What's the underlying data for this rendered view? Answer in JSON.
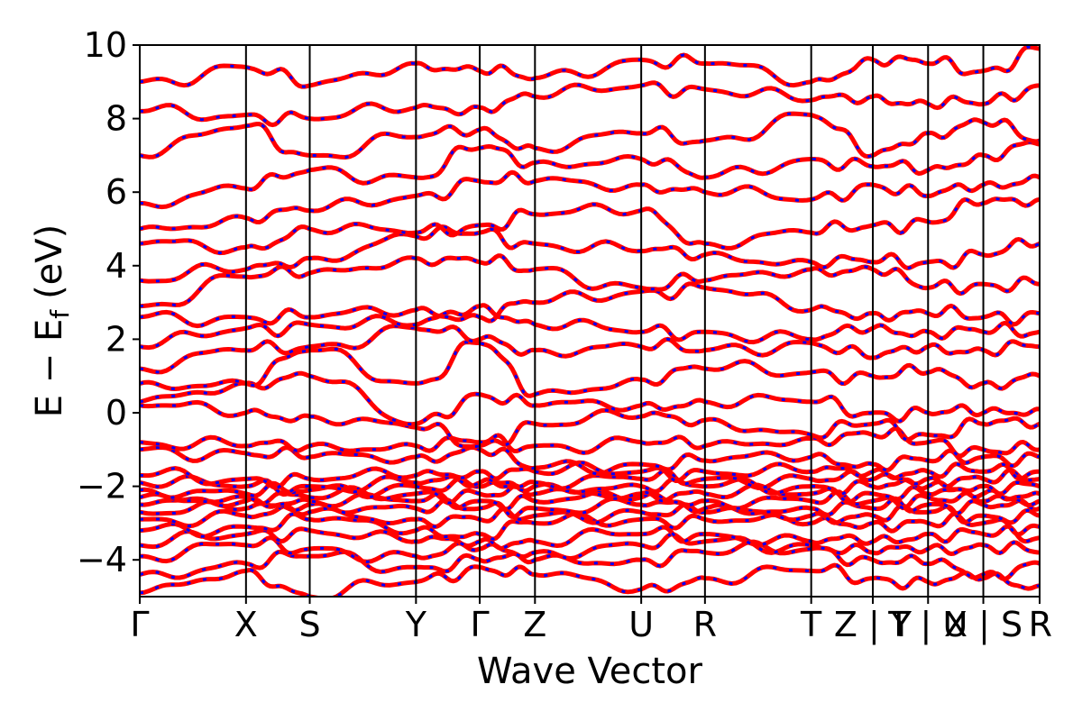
{
  "chart_data": {
    "type": "line",
    "xlabel": "Wave Vector",
    "ylabel": "E − E",
    "ylabel_subscript": "f",
    "ylabel_unit": "(eV)",
    "ylim": [
      -5,
      10
    ],
    "yticks": [
      {
        "value": 10,
        "label": "10"
      },
      {
        "value": 8,
        "label": "8"
      },
      {
        "value": 6,
        "label": "6"
      },
      {
        "value": 4,
        "label": "4"
      },
      {
        "value": 2,
        "label": "2"
      },
      {
        "value": 0,
        "label": "0"
      },
      {
        "value": -2,
        "label": "−2"
      },
      {
        "value": -4,
        "label": "−4"
      }
    ],
    "xlim": [
      0,
      8.47
    ],
    "kpoints": [
      {
        "pos": 0.0,
        "label": "Γ"
      },
      {
        "pos": 1.0,
        "label": "X"
      },
      {
        "pos": 1.6,
        "label": "S"
      },
      {
        "pos": 2.6,
        "label": "Y"
      },
      {
        "pos": 3.2,
        "label": "Γ"
      },
      {
        "pos": 3.72,
        "label": "Z"
      },
      {
        "pos": 4.72,
        "label": "U"
      },
      {
        "pos": 5.32,
        "label": "R"
      },
      {
        "pos": 6.32,
        "label": "T"
      },
      {
        "pos": 6.9,
        "label": "Z | Y"
      },
      {
        "pos": 7.42,
        "label": "T | U"
      },
      {
        "pos": 7.94,
        "label": "X | S"
      },
      {
        "pos": 8.47,
        "label": "R"
      }
    ],
    "grid": false,
    "legend": "none",
    "series": [
      {
        "line_color": "#ff0000",
        "line_width": 5,
        "dash": "none"
      },
      {
        "line_color": "#0000ff",
        "line_width": 3,
        "dash": "4 14"
      }
    ],
    "band_endpoint_energies": [
      [
        -4.9,
        -4.3,
        -5.0,
        -4.6,
        -4.2,
        -4.4,
        -4.8,
        -4.5,
        -4.3,
        -4.5,
        -4.6,
        -4.5,
        -4.7
      ],
      [
        -4.4,
        -4.1,
        -3.9,
        -4.2,
        -4.0,
        -4.0,
        -4.0,
        -3.8,
        -3.7,
        -4.0,
        -4.1,
        -4.4,
        -4.1
      ],
      [
        -3.9,
        -3.6,
        -3.7,
        -3.9,
        -3.7,
        -3.8,
        -3.6,
        -3.5,
        -3.6,
        -3.8,
        -3.7,
        -3.6,
        -3.8
      ],
      [
        -3.6,
        -3.3,
        -3.2,
        -3.5,
        -3.5,
        -3.5,
        -3.3,
        -3.3,
        -3.5,
        -3.5,
        -3.3,
        -3.3,
        -3.4
      ],
      [
        -3.2,
        -3.1,
        -2.9,
        -3.2,
        -3.3,
        -3.0,
        -2.9,
        -2.9,
        -3.0,
        -3.0,
        -3.0,
        -3.0,
        -3.1
      ],
      [
        -2.9,
        -2.8,
        -2.7,
        -2.9,
        -2.9,
        -2.8,
        -2.7,
        -2.7,
        -2.8,
        -2.8,
        -2.7,
        -2.8,
        -2.8
      ],
      [
        -2.7,
        -2.6,
        -2.5,
        -2.6,
        -2.6,
        -2.6,
        -2.5,
        -2.6,
        -2.6,
        -2.6,
        -2.5,
        -2.5,
        -2.6
      ],
      [
        -2.5,
        -2.4,
        -2.4,
        -2.4,
        -2.4,
        -2.4,
        -2.3,
        -2.4,
        -2.4,
        -2.4,
        -2.3,
        -2.4,
        -2.4
      ],
      [
        -2.3,
        -2.3,
        -2.3,
        -2.2,
        -2.2,
        -2.2,
        -2.2,
        -2.2,
        -2.2,
        -2.2,
        -2.2,
        -2.2,
        -2.2
      ],
      [
        -2.1,
        -2.2,
        -2.1,
        -2.0,
        -2.0,
        -2.0,
        -2.0,
        -2.0,
        -2.0,
        -2.0,
        -2.0,
        -2.0,
        -2.0
      ],
      [
        -1.9,
        -2.0,
        -2.0,
        -1.9,
        -1.9,
        -1.9,
        -1.8,
        -1.8,
        -1.8,
        -1.8,
        -1.8,
        -1.8,
        -1.8
      ],
      [
        -1.7,
        -1.8,
        -1.8,
        -1.7,
        -1.6,
        -1.6,
        -1.6,
        -1.6,
        -1.6,
        -1.6,
        -1.6,
        -1.6,
        -1.6
      ],
      [
        -1.0,
        -1.1,
        -1.2,
        -1.2,
        -1.0,
        -1.5,
        -1.4,
        -1.3,
        -1.2,
        -1.4,
        -1.3,
        -1.2,
        -1.2
      ],
      [
        -0.8,
        -0.9,
        -0.9,
        -0.9,
        -0.8,
        -0.9,
        -0.8,
        -0.9,
        -0.7,
        -0.6,
        -0.8,
        -1.0,
        -1.0
      ],
      [
        0.2,
        0.0,
        -0.1,
        -0.4,
        -0.9,
        -0.3,
        -0.1,
        -0.2,
        -0.6,
        -0.3,
        -0.6,
        -0.3,
        -0.3
      ],
      [
        0.3,
        0.8,
        1.0,
        -0.3,
        0.5,
        0.2,
        0.2,
        0.3,
        0.3,
        0.0,
        0.0,
        0.0,
        0.1
      ],
      [
        0.8,
        0.8,
        1.7,
        0.8,
        1.9,
        0.5,
        0.9,
        1.2,
        1.1,
        1.0,
        1.1,
        0.8,
        1.0
      ],
      [
        1.2,
        1.7,
        1.8,
        2.3,
        2.0,
        1.7,
        1.8,
        1.7,
        1.9,
        1.5,
        1.8,
        1.7,
        1.8
      ],
      [
        1.8,
        2.3,
        2.4,
        2.4,
        2.9,
        2.4,
        2.2,
        2.2,
        2.0,
        2.3,
        2.2,
        2.2,
        2.2
      ],
      [
        2.6,
        2.6,
        2.6,
        2.8,
        2.6,
        3.0,
        3.3,
        3.4,
        2.8,
        2.7,
        2.7,
        2.6,
        2.7
      ],
      [
        2.9,
        3.7,
        3.8,
        4.2,
        4.1,
        3.9,
        3.4,
        3.6,
        3.9,
        3.9,
        3.4,
        3.5,
        3.5
      ],
      [
        3.6,
        3.9,
        4.2,
        4.8,
        4.9,
        4.6,
        4.4,
        4.3,
        4.1,
        4.1,
        4.1,
        4.3,
        4.6
      ],
      [
        4.6,
        4.5,
        5.0,
        4.9,
        5.1,
        5.4,
        5.5,
        4.6,
        4.9,
        5.1,
        5.2,
        5.7,
        5.8
      ],
      [
        5.0,
        5.3,
        5.5,
        5.9,
        6.3,
        6.3,
        6.2,
        6.0,
        5.8,
        6.2,
        5.9,
        6.2,
        6.4
      ],
      [
        5.7,
        6.1,
        6.6,
        6.4,
        7.2,
        6.8,
        6.9,
        6.4,
        6.9,
        6.7,
        6.6,
        7.0,
        7.3
      ],
      [
        7.0,
        7.8,
        7.0,
        7.5,
        7.7,
        7.2,
        7.6,
        7.4,
        8.1,
        7.0,
        7.6,
        7.9,
        7.4
      ],
      [
        8.2,
        8.1,
        8.0,
        8.3,
        8.3,
        8.6,
        8.9,
        8.8,
        8.5,
        8.6,
        8.4,
        8.4,
        8.9
      ],
      [
        9.0,
        9.4,
        8.9,
        9.5,
        9.3,
        9.1,
        9.6,
        9.5,
        9.0,
        9.6,
        9.5,
        9.3,
        9.9
      ]
    ]
  }
}
